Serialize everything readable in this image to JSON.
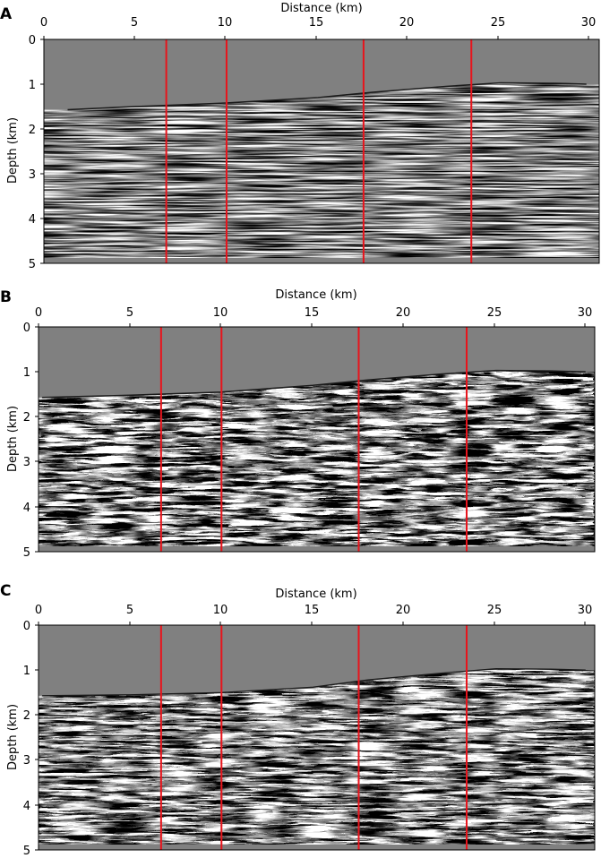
{
  "figure": {
    "panels": [
      {
        "label": "A",
        "xlabel": "Distance (km)",
        "ylabel": "Depth (km)",
        "x_ticks": [
          "0",
          "5",
          "10",
          "15",
          "20",
          "25",
          "30"
        ],
        "y_ticks": [
          "0",
          "1",
          "2",
          "3",
          "4",
          "5"
        ]
      },
      {
        "label": "B",
        "xlabel": "Distance (km)",
        "ylabel": "Depth (km)",
        "x_ticks": [
          "0",
          "5",
          "10",
          "15",
          "20",
          "25",
          "30"
        ],
        "y_ticks": [
          "0",
          "1",
          "2",
          "3",
          "4",
          "5"
        ]
      },
      {
        "label": "C",
        "xlabel": "Distance (km)",
        "ylabel": "Depth (km)",
        "x_ticks": [
          "0",
          "5",
          "10",
          "15",
          "20",
          "25",
          "30"
        ],
        "y_ticks": [
          "0",
          "1",
          "2",
          "3",
          "4",
          "5"
        ]
      }
    ]
  },
  "chart_data": [
    {
      "type": "heatmap",
      "panel": "A",
      "xlabel": "Distance (km)",
      "ylabel": "Depth (km)",
      "xlim": [
        0,
        30.4
      ],
      "ylim": [
        5,
        0
      ],
      "y_inverted": true,
      "grid": false,
      "colormap": "grayscale seismic image",
      "water_color": "#808080",
      "marker_color": "#e8141c",
      "vertical_markers_km": [
        6.7,
        10.0,
        17.5,
        23.4
      ],
      "seafloor": {
        "x": [
          1.3,
          5,
          10,
          15,
          18,
          22,
          25,
          28,
          29.7
        ],
        "depth": [
          1.57,
          1.5,
          1.42,
          1.3,
          1.18,
          1.05,
          0.97,
          0.98,
          1.0
        ]
      },
      "image_bottom_depth": 4.9
    },
    {
      "type": "heatmap",
      "panel": "B",
      "xlabel": "Distance (km)",
      "ylabel": "Depth (km)",
      "xlim": [
        0,
        30.4
      ],
      "ylim": [
        5,
        0
      ],
      "y_inverted": true,
      "grid": false,
      "colormap": "grayscale seismic image",
      "water_color": "#808080",
      "marker_color": "#e8141c",
      "vertical_markers_km": [
        6.7,
        10.0,
        17.5,
        23.4
      ],
      "seafloor": {
        "x": [
          0.2,
          5,
          10,
          15,
          18,
          22,
          25,
          28,
          29.9
        ],
        "depth": [
          1.57,
          1.52,
          1.45,
          1.3,
          1.18,
          1.05,
          0.97,
          0.98,
          1.0
        ]
      },
      "image_bottom_depth": 4.9
    },
    {
      "type": "heatmap",
      "panel": "C",
      "xlabel": "Distance (km)",
      "ylabel": "Depth (km)",
      "xlim": [
        0,
        30.4
      ],
      "ylim": [
        5,
        0
      ],
      "y_inverted": true,
      "grid": false,
      "colormap": "grayscale seismic image",
      "water_color": "#808080",
      "marker_color": "#e8141c",
      "vertical_markers_km": [
        6.7,
        10.0,
        17.5,
        23.4
      ],
      "seafloor": {
        "x": [
          0.2,
          5,
          10,
          15,
          18,
          22,
          25,
          28,
          29.9
        ],
        "depth": [
          1.57,
          1.55,
          1.5,
          1.38,
          1.22,
          1.07,
          0.97,
          0.98,
          1.0
        ]
      },
      "image_bottom_depth": 4.9
    }
  ]
}
